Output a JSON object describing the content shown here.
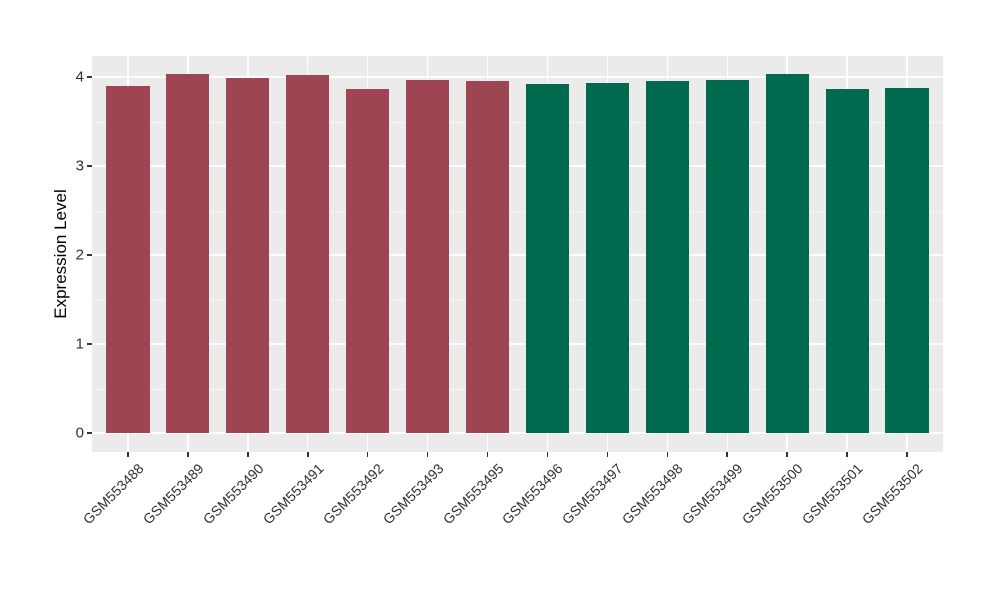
{
  "style": {
    "figure_background": "#FFFFFF",
    "panel_background": "#EBEBEB",
    "grid_color": "#FFFFFF",
    "tick_color": "#333333",
    "axis_text_color": "#303030",
    "group1_color": "#9E4554",
    "group2_color": "#006A4F"
  },
  "chart_data": {
    "type": "bar",
    "title": "",
    "xlabel": "",
    "ylabel": "Expression Level",
    "categories": [
      "GSM553488",
      "GSM553489",
      "GSM553490",
      "GSM553491",
      "GSM553492",
      "GSM553493",
      "GSM553495",
      "GSM553496",
      "GSM553497",
      "GSM553498",
      "GSM553499",
      "GSM553500",
      "GSM553501",
      "GSM553502"
    ],
    "values": [
      3.9,
      4.03,
      3.99,
      4.02,
      3.87,
      3.97,
      3.95,
      3.92,
      3.93,
      3.96,
      3.97,
      4.03,
      3.86,
      3.88
    ],
    "bar_colors": [
      "#9E4554",
      "#9E4554",
      "#9E4554",
      "#9E4554",
      "#9E4554",
      "#9E4554",
      "#9E4554",
      "#006A4F",
      "#006A4F",
      "#006A4F",
      "#006A4F",
      "#006A4F",
      "#006A4F",
      "#006A4F"
    ],
    "yticks": [
      0,
      1,
      2,
      3,
      4
    ],
    "y_tick_labels": [
      "0",
      "1",
      "2",
      "3",
      "4"
    ],
    "y_minor_ticks": [
      0.5,
      1.5,
      2.5,
      3.5
    ],
    "ylim": [
      -0.213,
      4.236
    ],
    "grid": true,
    "legend_position": "none"
  }
}
